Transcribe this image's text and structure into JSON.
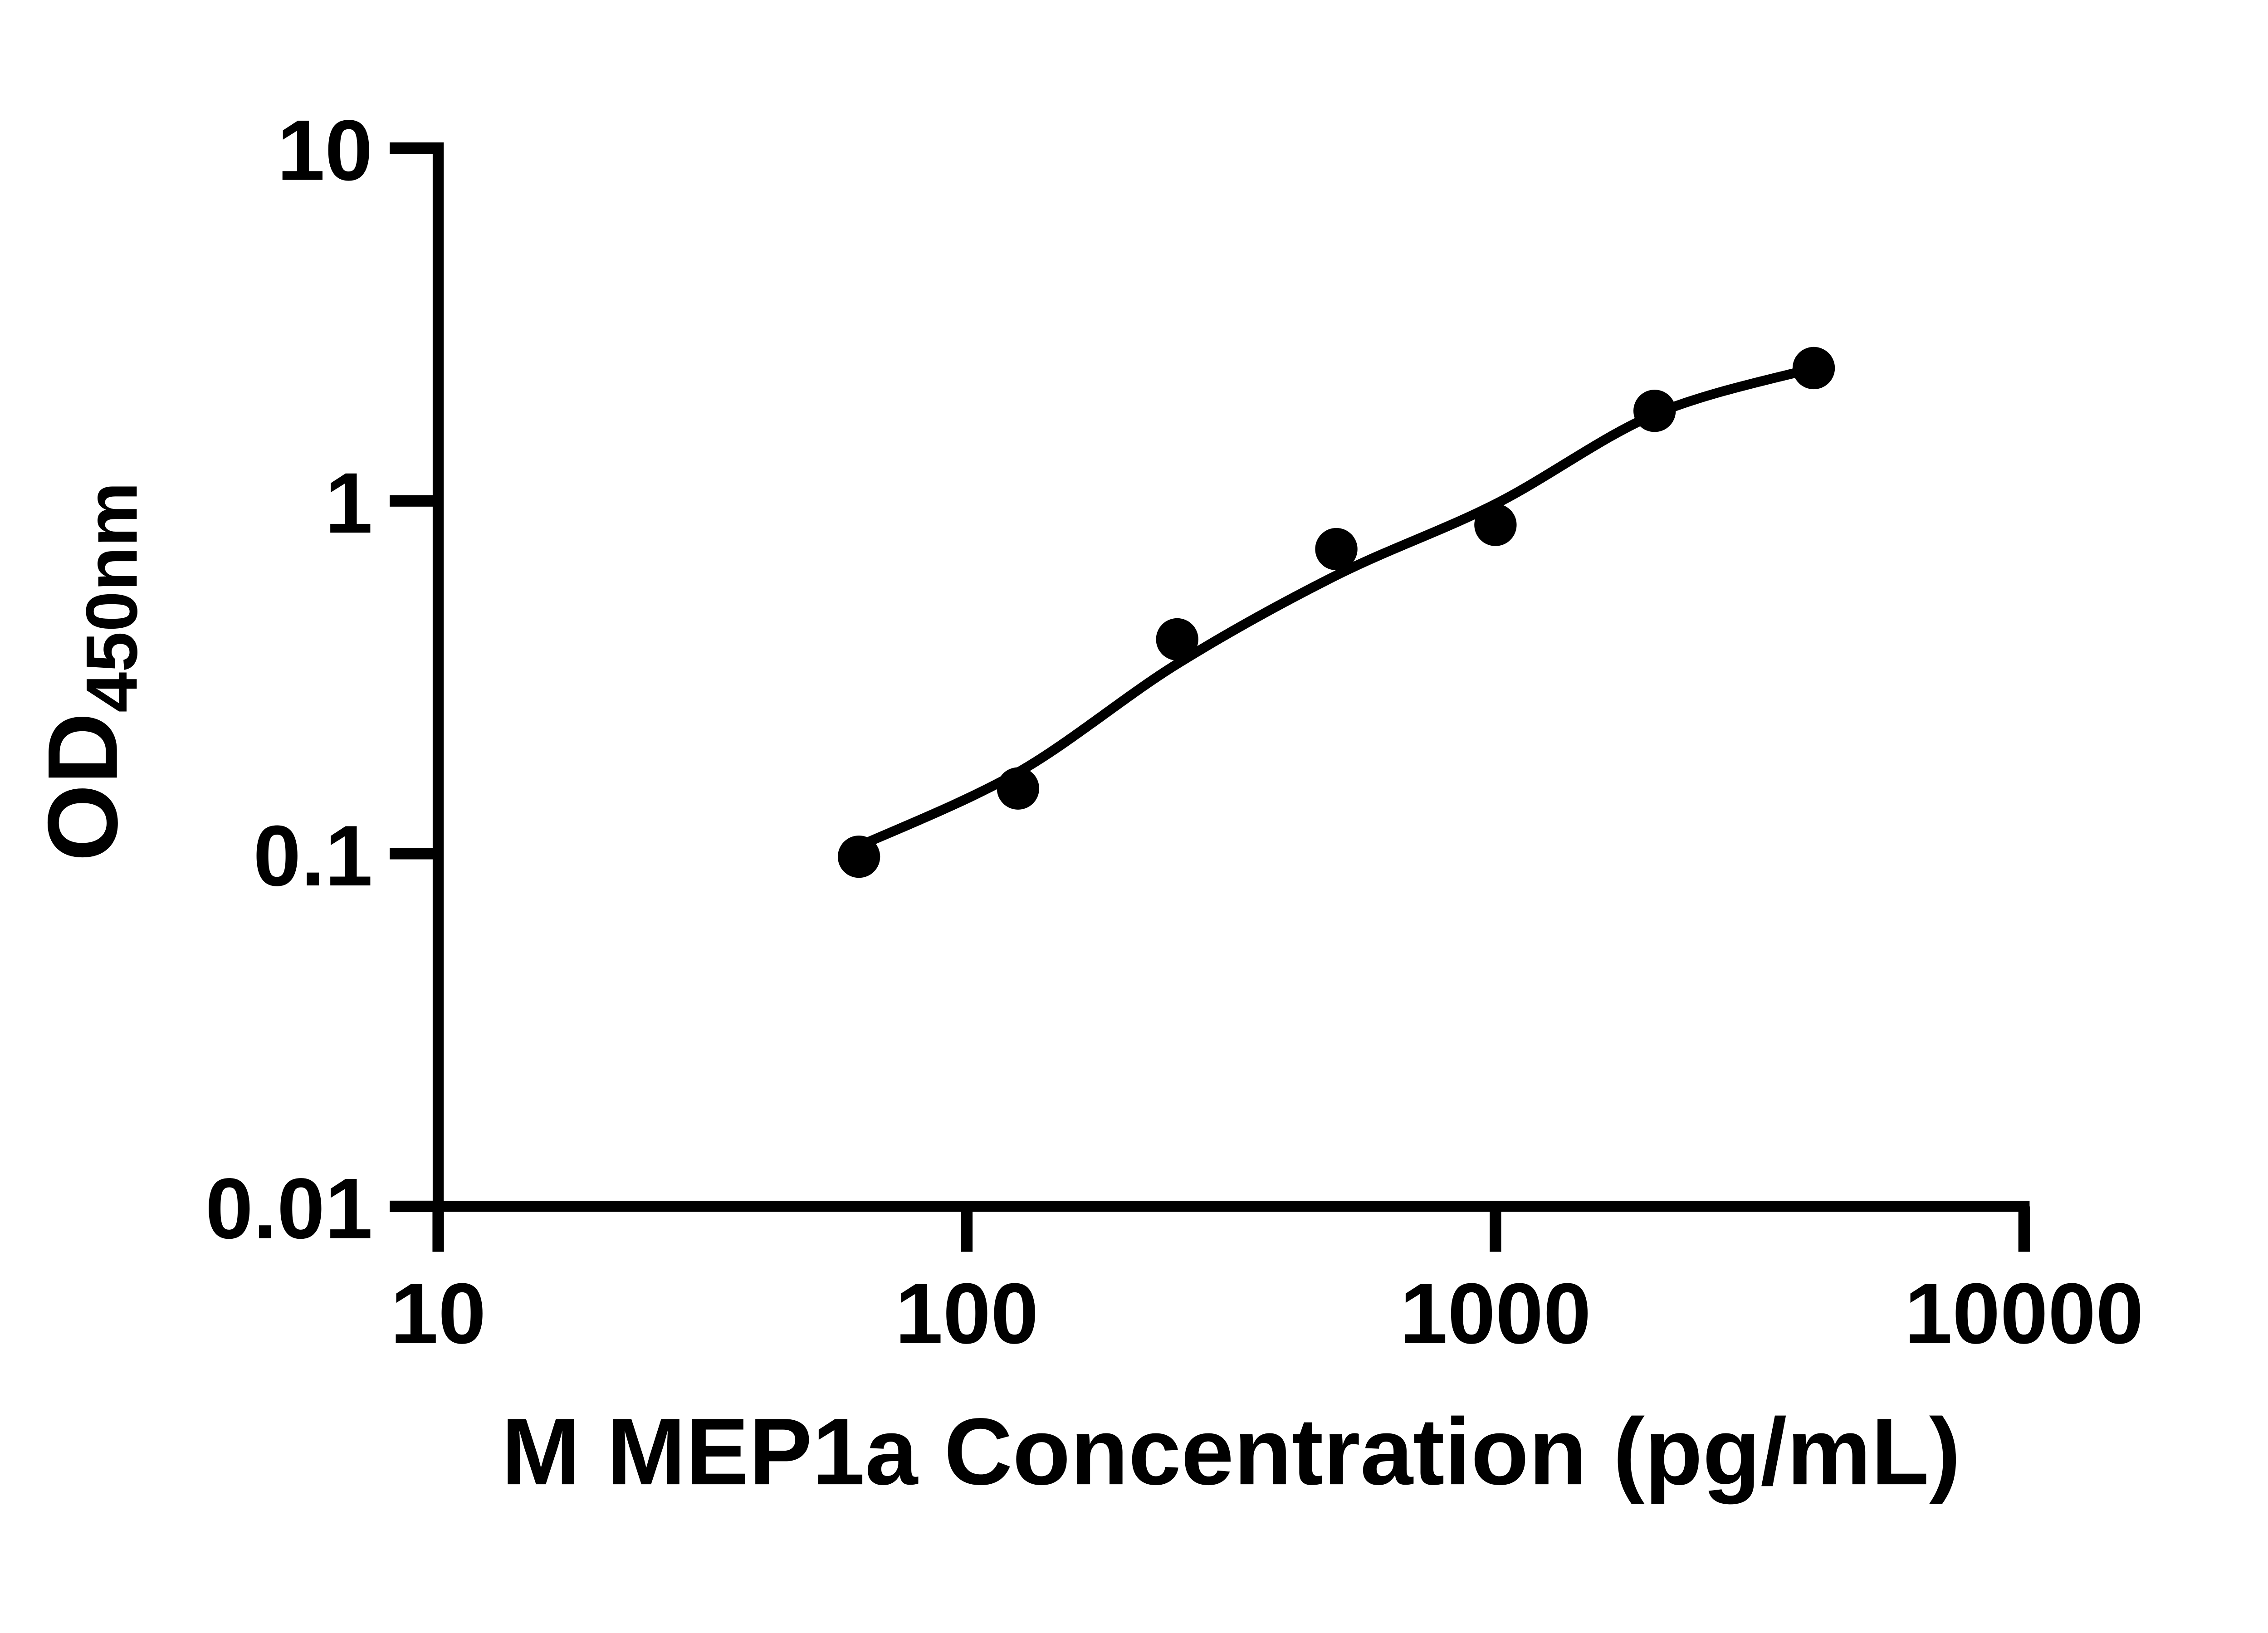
{
  "figure": {
    "background_color": "#ffffff",
    "ink_color": "#000000"
  },
  "chart_data": {
    "type": "scatter",
    "title": "",
    "xlabel": "M MEP1a Concentration (pg/mL)",
    "ylabel_main": "OD",
    "ylabel_sub": "450nm",
    "x_scale": "log10",
    "y_scale": "log10",
    "xlim": [
      10,
      10000
    ],
    "ylim": [
      0.01,
      10
    ],
    "grid": false,
    "legend_position": "none",
    "x_ticks": [
      {
        "value": 10,
        "label": "10"
      },
      {
        "value": 100,
        "label": "100"
      },
      {
        "value": 1000,
        "label": "1000"
      },
      {
        "value": 10000,
        "label": "10000"
      }
    ],
    "y_ticks": [
      {
        "value": 10,
        "label": "10"
      },
      {
        "value": 1,
        "label": "1"
      },
      {
        "value": 0.1,
        "label": "0.1"
      },
      {
        "value": 0.01,
        "label": "0.01"
      }
    ],
    "series": [
      {
        "name": "standard-curve-points",
        "marker": "filled-circle",
        "color": "#000000",
        "points": [
          {
            "x": 62.5,
            "od": 0.098
          },
          {
            "x": 125,
            "od": 0.153
          },
          {
            "x": 250,
            "od": 0.405
          },
          {
            "x": 500,
            "od": 0.73
          },
          {
            "x": 1000,
            "od": 0.855
          },
          {
            "x": 2000,
            "od": 1.8
          },
          {
            "x": 4000,
            "od": 2.38
          }
        ]
      }
    ],
    "fit_curve": {
      "name": "fit-line",
      "color": "#000000",
      "anchors": [
        {
          "x": 62.5,
          "od": 0.105
        },
        {
          "x": 125,
          "od": 0.17
        },
        {
          "x": 250,
          "od": 0.345
        },
        {
          "x": 500,
          "od": 0.615
        },
        {
          "x": 1000,
          "od": 0.98
        },
        {
          "x": 2000,
          "od": 1.76
        },
        {
          "x": 4000,
          "od": 2.38
        }
      ]
    }
  }
}
